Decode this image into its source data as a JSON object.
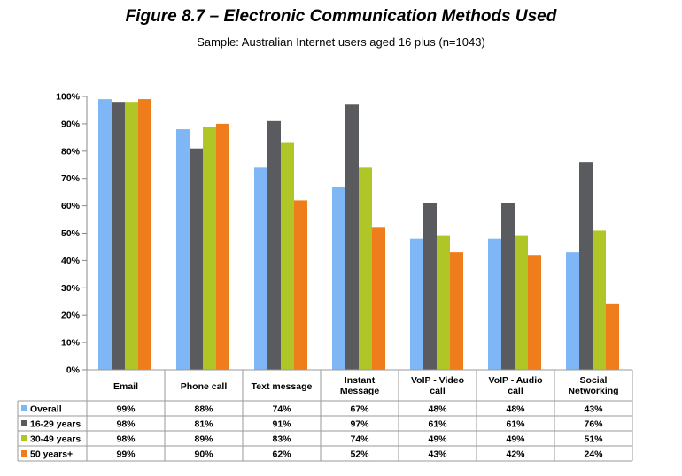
{
  "chart_data": {
    "type": "bar",
    "title": "Figure 8.7 – Electronic Communication Methods Used",
    "subtitle": "Sample: Australian Internet users aged 16 plus (n=1043)",
    "xlabel": "",
    "ylabel": "",
    "ylim": [
      0,
      100
    ],
    "yticks": [
      "0%",
      "10%",
      "20%",
      "30%",
      "40%",
      "50%",
      "60%",
      "70%",
      "80%",
      "90%",
      "100%"
    ],
    "grid": false,
    "legend": "data-table",
    "categories": [
      [
        "Email"
      ],
      [
        "Phone call"
      ],
      [
        "Text message"
      ],
      [
        "Instant",
        "Message"
      ],
      [
        "VoIP - Video",
        "call"
      ],
      [
        "VoIP - Audio",
        "call"
      ],
      [
        "Social",
        "Networking"
      ]
    ],
    "series": [
      {
        "name": "Overall",
        "color": "#7fb6f5",
        "values": [
          99,
          88,
          74,
          67,
          48,
          48,
          43
        ],
        "labels": [
          "99%",
          "88%",
          "74%",
          "67%",
          "48%",
          "48%",
          "43%"
        ]
      },
      {
        "name": "16-29 years",
        "color": "#5a5b5e",
        "values": [
          98,
          81,
          91,
          97,
          61,
          61,
          76
        ],
        "labels": [
          "98%",
          "81%",
          "91%",
          "97%",
          "61%",
          "61%",
          "76%"
        ]
      },
      {
        "name": "30-49 years",
        "color": "#afc626",
        "values": [
          98,
          89,
          83,
          74,
          49,
          49,
          51
        ],
        "labels": [
          "98%",
          "89%",
          "83%",
          "74%",
          "49%",
          "49%",
          "51%"
        ]
      },
      {
        "name": "50 years+",
        "color": "#f07d1c",
        "values": [
          99,
          90,
          62,
          52,
          43,
          42,
          24
        ],
        "labels": [
          "99%",
          "90%",
          "62%",
          "52%",
          "43%",
          "42%",
          "24%"
        ]
      }
    ]
  }
}
